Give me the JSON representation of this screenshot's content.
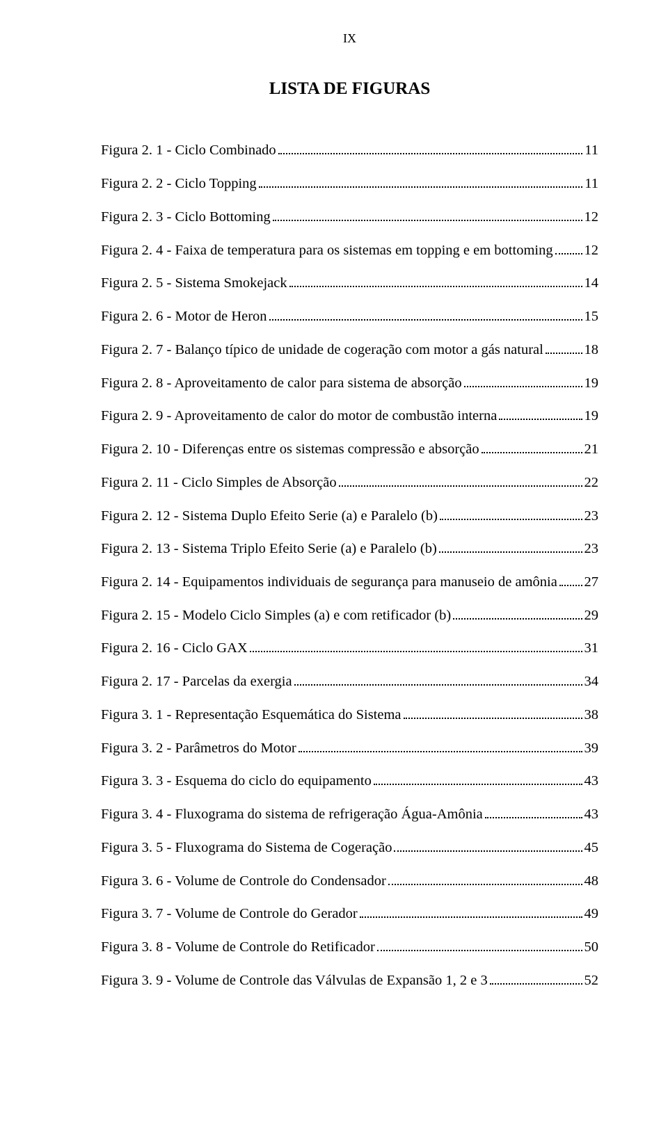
{
  "page_number_roman": "IX",
  "title": "LISTA DE FIGURAS",
  "font_family": "Times New Roman",
  "text_color": "#000000",
  "background_color": "#ffffff",
  "title_fontsize": 25,
  "entry_fontsize": 20.5,
  "entries": [
    {
      "label": "Figura 2. 1 - Ciclo Combinado",
      "page": "11"
    },
    {
      "label": "Figura 2. 2 - Ciclo Topping",
      "page": "11"
    },
    {
      "label": "Figura 2. 3 - Ciclo Bottoming",
      "page": "12"
    },
    {
      "label": "Figura 2. 4 - Faixa de temperatura para os sistemas em topping e em bottoming",
      "page": "12"
    },
    {
      "label": "Figura 2. 5 - Sistema Smokejack",
      "page": "14"
    },
    {
      "label": "Figura 2. 6 - Motor de Heron",
      "page": "15"
    },
    {
      "label": "Figura 2. 7 - Balanço típico de unidade de cogeração com motor a gás natural",
      "page": "18"
    },
    {
      "label": "Figura 2. 8 - Aproveitamento de calor para sistema de absorção",
      "page": "19"
    },
    {
      "label": "Figura 2. 9 - Aproveitamento de calor do motor de combustão interna",
      "page": "19"
    },
    {
      "label": "Figura 2. 10 - Diferenças entre os sistemas compressão e absorção",
      "page": "21"
    },
    {
      "label": "Figura 2. 11 - Ciclo Simples de Absorção",
      "page": "22"
    },
    {
      "label": "Figura 2. 12 - Sistema Duplo Efeito Serie (a) e Paralelo (b)",
      "page": "23"
    },
    {
      "label": "Figura 2. 13 - Sistema Triplo Efeito Serie (a) e Paralelo (b)",
      "page": "23"
    },
    {
      "label": "Figura 2. 14 - Equipamentos individuais de segurança para manuseio de amônia",
      "page": "27"
    },
    {
      "label": "Figura 2. 15 - Modelo Ciclo Simples (a) e com retificador (b)",
      "page": "29"
    },
    {
      "label": "Figura 2. 16 - Ciclo GAX",
      "page": "31"
    },
    {
      "label": "Figura 2. 17 - Parcelas da exergia",
      "page": "34"
    },
    {
      "label": "Figura 3. 1 - Representação Esquemática do Sistema",
      "page": "38"
    },
    {
      "label": "Figura 3. 2 - Parâmetros do Motor",
      "page": "39"
    },
    {
      "label": "Figura 3. 3 - Esquema do ciclo do equipamento",
      "page": "43"
    },
    {
      "label": "Figura 3. 4 - Fluxograma do sistema de refrigeração Água-Amônia",
      "page": "43"
    },
    {
      "label": "Figura 3. 5 - Fluxograma do Sistema de Cogeração",
      "page": "45"
    },
    {
      "label": "Figura 3. 6 - Volume de Controle do Condensador",
      "page": "48"
    },
    {
      "label": "Figura 3. 7 - Volume de Controle do Gerador",
      "page": "49"
    },
    {
      "label": "Figura 3. 8 - Volume de Controle do Retificador",
      "page": "50"
    },
    {
      "label": "Figura 3. 9 - Volume de Controle das Válvulas de Expansão 1, 2 e 3",
      "page": "52"
    }
  ]
}
